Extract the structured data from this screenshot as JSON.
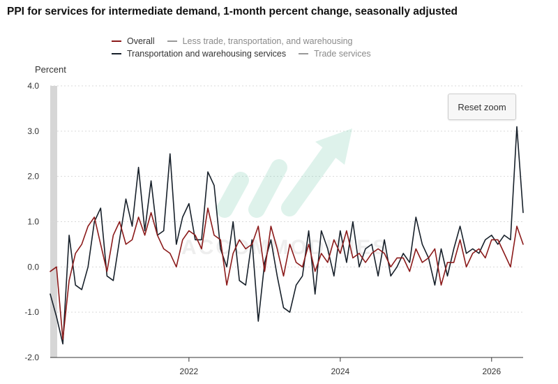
{
  "title": "PPI for services for intermediate demand, 1-month percent change, seasonally adjusted",
  "legend": [
    {
      "label": "Overall",
      "color": "#8b1a1a",
      "active": true
    },
    {
      "label": "Less trade, transportation, and warehousing",
      "color": "#999999",
      "active": false
    },
    {
      "label": "Transportation and warehousing services",
      "color": "#17202a",
      "active": true
    },
    {
      "label": "Trade services",
      "color": "#999999",
      "active": false
    }
  ],
  "reset_zoom_label": "Reset zoom",
  "watermark": "ACCOMMODITIES",
  "chart_data": {
    "type": "line",
    "ylabel": "Percent",
    "ylim": [
      -2.0,
      4.0
    ],
    "yticks": [
      "4.0",
      "3.0",
      "2.0",
      "1.0",
      "0.0",
      "-1.0",
      "-2.0"
    ],
    "ytick_values": [
      4,
      3,
      2,
      1,
      0,
      -1,
      -2
    ],
    "xlim": [
      "2020-03",
      "2026-06"
    ],
    "xticks": [
      {
        "label": "2022",
        "date": "2022-01"
      },
      {
        "label": "2024",
        "date": "2024-01"
      },
      {
        "label": "2026",
        "date": "2026-01"
      }
    ],
    "recession_shading": {
      "start": "2020-03",
      "end": "2020-04"
    },
    "grid": "horizontal dashed",
    "legend_placement": "top",
    "start_month": "2020-03",
    "series": [
      {
        "name": "Overall",
        "color": "#8b1a1a",
        "values": [
          -0.1,
          0.0,
          -1.6,
          -0.3,
          0.3,
          0.5,
          0.9,
          1.1,
          0.5,
          -0.1,
          0.7,
          1.0,
          0.5,
          0.6,
          1.1,
          0.7,
          1.2,
          0.7,
          0.4,
          0.3,
          0.0,
          0.6,
          0.8,
          0.7,
          0.4,
          1.3,
          0.7,
          0.6,
          -0.4,
          0.3,
          0.6,
          0.4,
          0.5,
          0.9,
          -0.1,
          0.9,
          0.4,
          -0.2,
          0.5,
          0.1,
          0.0,
          0.5,
          -0.1,
          0.3,
          0.1,
          0.6,
          0.3,
          0.8,
          0.2,
          0.3,
          0.1,
          0.3,
          0.4,
          0.3,
          0.0,
          0.2,
          0.2,
          -0.1,
          0.4,
          0.1,
          0.2,
          0.4,
          -0.4,
          0.1,
          0.1,
          0.6,
          0.0,
          0.3,
          0.4,
          0.2,
          0.6,
          0.6,
          0.3,
          0.0,
          0.9,
          0.5
        ]
      },
      {
        "name": "Transportation and warehousing services",
        "color": "#17202a",
        "values": [
          -0.6,
          -1.1,
          -1.7,
          0.7,
          -0.4,
          -0.5,
          0.0,
          1.0,
          1.3,
          -0.2,
          -0.3,
          0.6,
          1.5,
          0.9,
          2.2,
          0.8,
          1.9,
          0.7,
          0.8,
          2.5,
          0.5,
          1.1,
          1.4,
          0.6,
          0.6,
          2.1,
          1.8,
          0.4,
          0.0,
          1.0,
          -0.3,
          -0.4,
          0.6,
          -1.2,
          0.1,
          0.6,
          -0.2,
          -0.9,
          -1.0,
          -0.4,
          -0.2,
          0.8,
          -0.6,
          0.8,
          0.4,
          -0.2,
          0.8,
          0.1,
          1.0,
          0.0,
          0.4,
          0.5,
          -0.2,
          0.6,
          -0.2,
          0.0,
          0.3,
          0.1,
          1.1,
          0.5,
          0.2,
          -0.4,
          0.4,
          -0.2,
          0.4,
          0.9,
          0.3,
          0.4,
          0.3,
          0.6,
          0.7,
          0.5,
          0.7,
          0.6,
          3.1,
          1.2
        ]
      }
    ]
  }
}
